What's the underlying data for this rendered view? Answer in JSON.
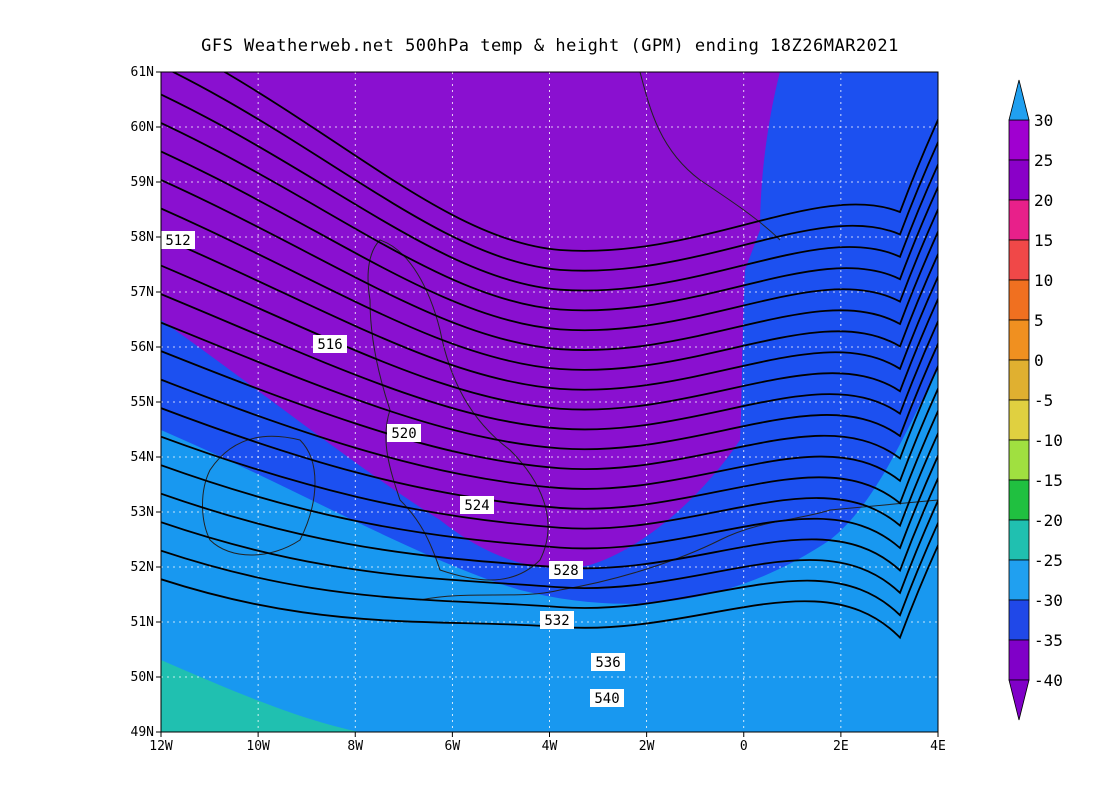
{
  "title": "GFS Weatherweb.net 500hPa temp & height (GPM) ending 18Z26MAR2021",
  "axes": {
    "lat_labels": [
      "61N",
      "60N",
      "59N",
      "58N",
      "57N",
      "56N",
      "55N",
      "54N",
      "53N",
      "52N",
      "51N",
      "50N",
      "49N"
    ],
    "lon_labels": [
      "12W",
      "10W",
      "8W",
      "6W",
      "4W",
      "2W",
      "0",
      "2E",
      "4E"
    ]
  },
  "height_contours": [
    "512",
    "516",
    "520",
    "524",
    "528",
    "532",
    "536",
    "540"
  ],
  "colorbar": {
    "labels": [
      "30",
      "25",
      "20",
      "15",
      "10",
      "5",
      "0",
      "-5",
      "-10",
      "-15",
      "-20",
      "-25",
      "-30",
      "-35",
      "-40"
    ],
    "colors": [
      "#1c5cf0",
      "#a000d0",
      "#8a00c8",
      "#e8208a",
      "#f04848",
      "#f07020",
      "#f09020",
      "#e0b030",
      "#e0d040",
      "#a0e040",
      "#20c040",
      "#20c0b0",
      "#20a0f0",
      "#2048e8",
      "#8000c8"
    ]
  },
  "colors": {
    "purple": "#8a10d0",
    "blue_dark": "#1c50f0",
    "blue_mid": "#1898f0",
    "blue_light": "#20a8f0",
    "teal": "#20c0b0"
  }
}
